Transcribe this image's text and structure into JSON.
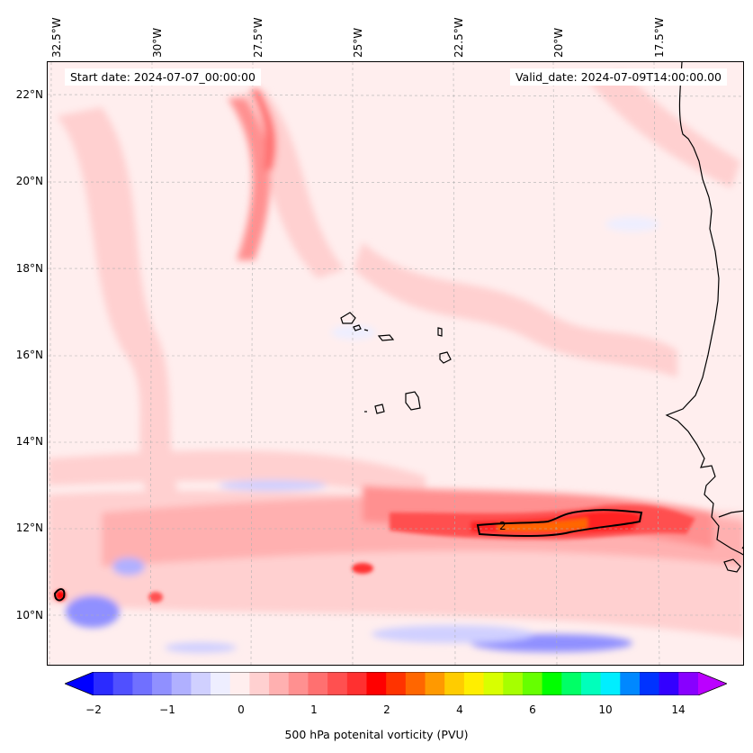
{
  "header": {
    "start_date": "Start date: 2024-07-07_00:00:00",
    "valid_date": "Valid_date: 2024-07-09T14:00:00.00"
  },
  "axes": {
    "longitude_labels": [
      "32.5°W",
      "30°W",
      "27.5°W",
      "25°W",
      "22.5°W",
      "20°W",
      "17.5°W"
    ],
    "latitude_labels": [
      "22°N",
      "20°N",
      "18°N",
      "16°N",
      "14°N",
      "12°N",
      "10°N"
    ],
    "lon_range": [
      -32.5,
      -15.5
    ],
    "lat_range": [
      8.9,
      22.8
    ]
  },
  "contour": {
    "label": "2",
    "level": 2
  },
  "colorbar": {
    "label": "500 hPa potenital vorticity (PVU)",
    "tick_labels": [
      "−2",
      "−1",
      "0",
      "1",
      "2",
      "4",
      "6",
      "10",
      "14"
    ],
    "colors": [
      "#0000ff",
      "#2b2bff",
      "#5050ff",
      "#7070ff",
      "#9090ff",
      "#b0b0ff",
      "#d0d0ff",
      "#eeeeff",
      "#ffeeee",
      "#ffd0d0",
      "#ffb0b0",
      "#ff9090",
      "#ff7070",
      "#ff5050",
      "#ff3030",
      "#ff0000",
      "#ff3300",
      "#ff6600",
      "#ff9900",
      "#ffcc00",
      "#ffee00",
      "#d8ff00",
      "#a6ff00",
      "#66ff00",
      "#00ff00",
      "#00ff66",
      "#00ffbb",
      "#00eeff",
      "#0088ff",
      "#0033ff",
      "#3300ff",
      "#8800ff",
      "#bb00ff"
    ]
  },
  "colors": {
    "frame": "#000000",
    "coast": "#000000",
    "grid": "#b0b0b0"
  }
}
